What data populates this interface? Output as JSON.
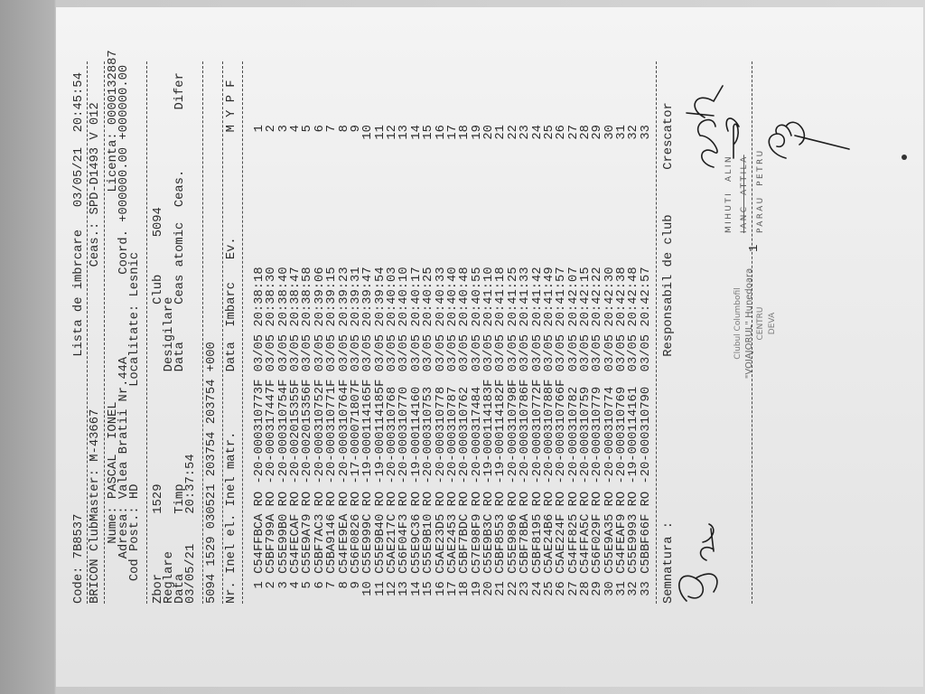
{
  "header": {
    "code_label": "Code:",
    "code": "7B8537",
    "title": "Lista de imbrcare",
    "date": "03/05/21",
    "time": "20:45:54",
    "clubmaster": "BRICON ClubMaster: M-43667",
    "clock": "Ceas.: SPD-D1493 V 012"
  },
  "owner": {
    "name_label": "Nume:",
    "name": "PASCAL  IONEL",
    "address_label": "Adresa:",
    "address": "Valea Bratii Nr.44A",
    "postcode_label": "Cod Post.:",
    "postcode": "HD",
    "license_label": "Licenta:",
    "license": "0000132887",
    "coord_label": "Coord.",
    "coord_x": "+000000.00",
    "coord_y": "+000000.00",
    "locality_label": "Localitate:",
    "locality": "Lesnic"
  },
  "flight": {
    "zbor_label": "Zbor",
    "zbor": "1529",
    "club_label": "Club",
    "club": "5094",
    "reglare_label": "Reglare",
    "desigilare_label": "Desigilare",
    "data_label": "Data",
    "timp_label": "Timp",
    "data2_label": "Data",
    "ceas_atomic_label": "Ceas atomic",
    "ceas_label": "Ceas.",
    "difer_label": "Difer",
    "reg_date": "03/05/21",
    "reg_time": "20:37:54",
    "code_line": "5094 1529 030521 203754 203754 +000"
  },
  "table": {
    "headers": {
      "nr": "Nr.",
      "ring_el": "Inel el.",
      "ring": "Inel matr.",
      "date": "Data",
      "time": "Imbarc",
      "ev": "Ev.",
      "m": "M",
      "y": "Y",
      "p": "P",
      "f": "F"
    },
    "rows": [
      {
        "nr": "1",
        "el": "C54FFBCA",
        "c": "RO",
        "matr": "-20-000310773F",
        "date": "03/05",
        "time": "20:38:18",
        "m": "1"
      },
      {
        "nr": "2",
        "el": "C5BF799A",
        "c": "RO",
        "matr": "-20-000317447F",
        "date": "03/05",
        "time": "20:38:30",
        "m": "2"
      },
      {
        "nr": "3",
        "el": "C55E99B0",
        "c": "RO",
        "matr": "-20-000310754F",
        "date": "03/05",
        "time": "20:38:40",
        "m": "3"
      },
      {
        "nr": "4",
        "el": "C54FECAF",
        "c": "RO",
        "matr": "-20-002015355F",
        "date": "03/05",
        "time": "20:38:47",
        "m": "4"
      },
      {
        "nr": "5",
        "el": "C55E9A79",
        "c": "RO",
        "matr": "-20-002015356F",
        "date": "03/05",
        "time": "20:38:58",
        "m": "5"
      },
      {
        "nr": "6",
        "el": "C5BF7AC3",
        "c": "RO",
        "matr": "-20-000310752F",
        "date": "03/05",
        "time": "20:39:06",
        "m": "6"
      },
      {
        "nr": "7",
        "el": "C5BA9146",
        "c": "RO",
        "matr": "-20-000310771F",
        "date": "03/05",
        "time": "20:39:15",
        "m": "7"
      },
      {
        "nr": "8",
        "el": "C54FE9EA",
        "c": "RO",
        "matr": "-20-000310764F",
        "date": "03/05",
        "time": "20:39:23",
        "m": "8"
      },
      {
        "nr": "9",
        "el": "C56F0826",
        "c": "RO",
        "matr": "-17-000071807F",
        "date": "03/05",
        "time": "20:39:31",
        "m": "9"
      },
      {
        "nr": "10",
        "el": "C55E999C",
        "c": "RO",
        "matr": "-19-000114165F",
        "date": "03/05",
        "time": "20:39:47",
        "m": "10"
      },
      {
        "nr": "11",
        "el": "C55E9B40",
        "c": "RO",
        "matr": "-19-000114185F",
        "date": "03/05",
        "time": "20:39:54",
        "m": "11"
      },
      {
        "nr": "12",
        "el": "C5AE217C",
        "c": "RO",
        "matr": "-20-000310768",
        "date": "03/05",
        "time": "20:40:03",
        "m": "12"
      },
      {
        "nr": "13",
        "el": "C56F04F3",
        "c": "RO",
        "matr": "-20-000310770",
        "date": "03/05",
        "time": "20:40:10",
        "m": "13"
      },
      {
        "nr": "14",
        "el": "C55E9C36",
        "c": "RO",
        "matr": "-19-000114160",
        "date": "03/05",
        "time": "20:40:17",
        "m": "14"
      },
      {
        "nr": "15",
        "el": "C55E9B10",
        "c": "RO",
        "matr": "-20-000310753",
        "date": "03/05",
        "time": "20:40:25",
        "m": "15"
      },
      {
        "nr": "16",
        "el": "C5AE23D5",
        "c": "RO",
        "matr": "-20-000310778",
        "date": "03/05",
        "time": "20:40:33",
        "m": "16"
      },
      {
        "nr": "17",
        "el": "C5AE2453",
        "c": "RO",
        "matr": "-20-000310787",
        "date": "03/05",
        "time": "20:40:40",
        "m": "17"
      },
      {
        "nr": "18",
        "el": "C5BF7BDC",
        "c": "RO",
        "matr": "-20-000310762",
        "date": "03/05",
        "time": "20:40:48",
        "m": "18"
      },
      {
        "nr": "19",
        "el": "C57E98F9",
        "c": "RO",
        "matr": "-20-000317484",
        "date": "03/05",
        "time": "20:40:55",
        "m": "19"
      },
      {
        "nr": "20",
        "el": "C55E9B3C",
        "c": "RO",
        "matr": "-19-000114183F",
        "date": "03/05",
        "time": "20:41:10",
        "m": "20"
      },
      {
        "nr": "21",
        "el": "C5BF8553",
        "c": "RO",
        "matr": "-19-000114182F",
        "date": "03/05",
        "time": "20:41:18",
        "m": "21"
      },
      {
        "nr": "22",
        "el": "C55E9896",
        "c": "RO",
        "matr": "-20-000310798F",
        "date": "03/05",
        "time": "20:41:25",
        "m": "22"
      },
      {
        "nr": "23",
        "el": "C5BF78BA",
        "c": "RO",
        "matr": "-20-000310786F",
        "date": "03/05",
        "time": "20:41:33",
        "m": "23"
      },
      {
        "nr": "24",
        "el": "C5BF8195",
        "c": "RO",
        "matr": "-20-000310772F",
        "date": "03/05",
        "time": "20:41:42",
        "m": "24"
      },
      {
        "nr": "25",
        "el": "C5AE24B6",
        "c": "RO",
        "matr": "-20-000310788F",
        "date": "03/05",
        "time": "20:41:49",
        "m": "25"
      },
      {
        "nr": "26",
        "el": "C5AE224F",
        "c": "RO",
        "matr": "-20-000310766F",
        "date": "03/05",
        "time": "20:41:57",
        "m": "26"
      },
      {
        "nr": "27",
        "el": "C54FF825",
        "c": "RO",
        "matr": "-20-000310782",
        "date": "03/05",
        "time": "20:42:07",
        "m": "27"
      },
      {
        "nr": "28",
        "el": "C54FFA5C",
        "c": "RO",
        "matr": "-20-000310759",
        "date": "03/05",
        "time": "20:42:15",
        "m": "28"
      },
      {
        "nr": "29",
        "el": "C56F029F",
        "c": "RO",
        "matr": "-20-000310779",
        "date": "03/05",
        "time": "20:42:22",
        "m": "29"
      },
      {
        "nr": "30",
        "el": "C55E9A35",
        "c": "RO",
        "matr": "-20-000310774",
        "date": "03/05",
        "time": "20:42:30",
        "m": "30"
      },
      {
        "nr": "31",
        "el": "C54FEAF9",
        "c": "RO",
        "matr": "-20-000310769",
        "date": "03/05",
        "time": "20:42:38",
        "m": "31"
      },
      {
        "nr": "32",
        "el": "C55E9993",
        "c": "RO",
        "matr": "-19-000114161",
        "date": "03/05",
        "time": "20:42:48",
        "m": "32"
      },
      {
        "nr": "33",
        "el": "C5BBF66F",
        "c": "RO",
        "matr": "-20-000310790",
        "date": "03/05",
        "time": "20:42:57",
        "m": "33"
      }
    ]
  },
  "footer": {
    "signature_label": "Semnatura :",
    "club_resp_label": "Responsabil de club",
    "breeder_label": "Crescator",
    "stamp": [
      "Clubul Columbofil",
      "\"VOIAJORUL\" Hunedoara",
      "CENTRU",
      "DEVA"
    ],
    "stamp_number": "1",
    "witnesses": [
      "MIHUTI  ALIN",
      "IANC  ATTILA",
      "PARAU  PETRU"
    ]
  }
}
